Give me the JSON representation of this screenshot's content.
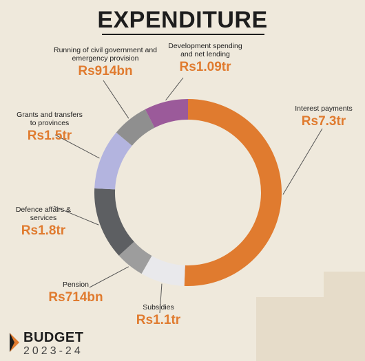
{
  "chart_data": {
    "type": "pie",
    "title": "EXPENDITURE",
    "unit": "Rs",
    "slices": [
      {
        "name": "Interest payments",
        "label": "Rs7.3tr",
        "value": 7300,
        "color": "#e07b2f"
      },
      {
        "name": "Subsidies",
        "label": "Rs1.1tr",
        "value": 1100,
        "color": "#e9e9ec"
      },
      {
        "name": "Pension",
        "label": "Rs714bn",
        "value": 714,
        "color": "#9d9d9d"
      },
      {
        "name": "Defence affairs & services",
        "label": "Rs1.8tr",
        "value": 1800,
        "color": "#5d5f62"
      },
      {
        "name": "Grants and transfers to provinces",
        "label": "Rs1.5tr",
        "value": 1500,
        "color": "#b3b4df"
      },
      {
        "name": "Running of civil government and emergency provision",
        "label": "Rs914bn",
        "value": 914,
        "color": "#8f8f8f"
      },
      {
        "name": "Development spending and net lending",
        "label": "Rs1.09tr",
        "value": 1090,
        "color": "#9b5a9a"
      }
    ]
  },
  "labels": {
    "interest": {
      "name": "Interest payments",
      "value": "Rs7.3tr"
    },
    "subsidies": {
      "name": "Subsidies",
      "value": "Rs1.1tr"
    },
    "pension": {
      "name": "Pension",
      "value": "Rs714bn"
    },
    "defence": {
      "name": "Defence affairs & services",
      "value": "Rs1.8tr"
    },
    "grants": {
      "name": "Grants and transfers to provinces",
      "value": "Rs1.5tr"
    },
    "civil": {
      "name": "Running of civil government and emergency provision",
      "value": "Rs914bn"
    },
    "development": {
      "name": "Development spending and net lending",
      "value": "Rs1.09tr"
    }
  },
  "brand": {
    "line1": "BUDGET",
    "line2": "2023-24"
  },
  "colors": {
    "accent": "#e07b2f",
    "background": "#efe9dc"
  }
}
